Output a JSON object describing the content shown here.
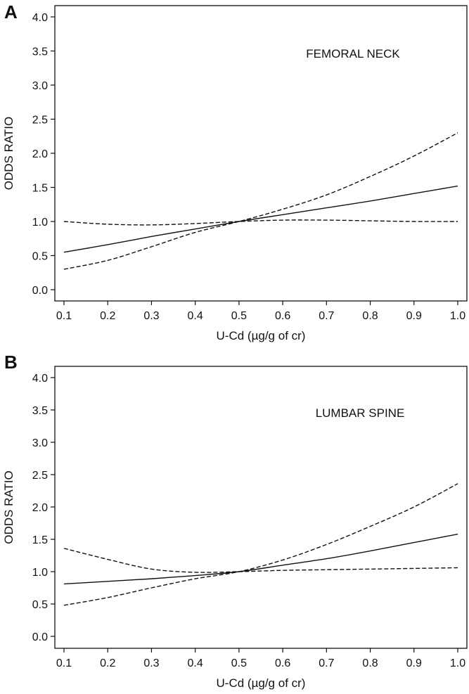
{
  "chart_data": [
    {
      "panel": "A",
      "type": "line",
      "annotation": "FEMORAL NECK",
      "xlabel": "U-Cd (µg/g of cr)",
      "ylabel": "ODDS RATIO",
      "xlim": [
        0.1,
        1.0
      ],
      "ylim": [
        0.0,
        4.0
      ],
      "x_ticks": [
        "0.1",
        "0.2",
        "0.3",
        "0.4",
        "0.5",
        "0.6",
        "0.7",
        "0.8",
        "0.9",
        "1.0"
      ],
      "y_ticks": [
        "0.0",
        "0.5",
        "1.0",
        "1.5",
        "2.0",
        "2.5",
        "3.0",
        "3.5",
        "4.0"
      ],
      "grid": false,
      "x": [
        0.1,
        0.2,
        0.3,
        0.4,
        0.5,
        0.6,
        0.7,
        0.8,
        0.9,
        1.0
      ],
      "series": [
        {
          "style": "solid",
          "values": [
            0.55,
            0.66,
            0.78,
            0.89,
            1.0,
            1.1,
            1.2,
            1.3,
            1.41,
            1.52
          ]
        },
        {
          "style": "dashed",
          "values": [
            0.3,
            0.43,
            0.63,
            0.84,
            1.0,
            1.18,
            1.39,
            1.66,
            1.96,
            2.3
          ]
        },
        {
          "style": "dashed",
          "values": [
            1.0,
            0.96,
            0.95,
            0.97,
            1.0,
            1.02,
            1.02,
            1.01,
            1.0,
            1.0
          ]
        }
      ]
    },
    {
      "panel": "B",
      "type": "line",
      "annotation": "LUMBAR SPINE",
      "xlabel": "U-Cd (µg/g of cr)",
      "ylabel": "ODDS RATIO",
      "xlim": [
        0.1,
        1.0
      ],
      "ylim": [
        0.0,
        4.0
      ],
      "x_ticks": [
        "0.1",
        "0.2",
        "0.3",
        "0.4",
        "0.5",
        "0.6",
        "0.7",
        "0.8",
        "0.9",
        "1.0"
      ],
      "y_ticks": [
        "0.0",
        "0.5",
        "1.0",
        "1.5",
        "2.0",
        "2.5",
        "3.0",
        "3.5",
        "4.0"
      ],
      "grid": false,
      "x": [
        0.1,
        0.2,
        0.3,
        0.4,
        0.5,
        0.6,
        0.7,
        0.8,
        0.9,
        1.0
      ],
      "series": [
        {
          "style": "solid",
          "values": [
            0.81,
            0.85,
            0.89,
            0.94,
            1.0,
            1.1,
            1.2,
            1.32,
            1.45,
            1.58
          ]
        },
        {
          "style": "dashed",
          "values": [
            0.48,
            0.6,
            0.75,
            0.89,
            1.0,
            1.18,
            1.42,
            1.7,
            2.0,
            2.36
          ]
        },
        {
          "style": "dashed",
          "values": [
            1.36,
            1.19,
            1.04,
            0.99,
            1.0,
            1.02,
            1.03,
            1.04,
            1.05,
            1.06
          ]
        }
      ]
    }
  ]
}
